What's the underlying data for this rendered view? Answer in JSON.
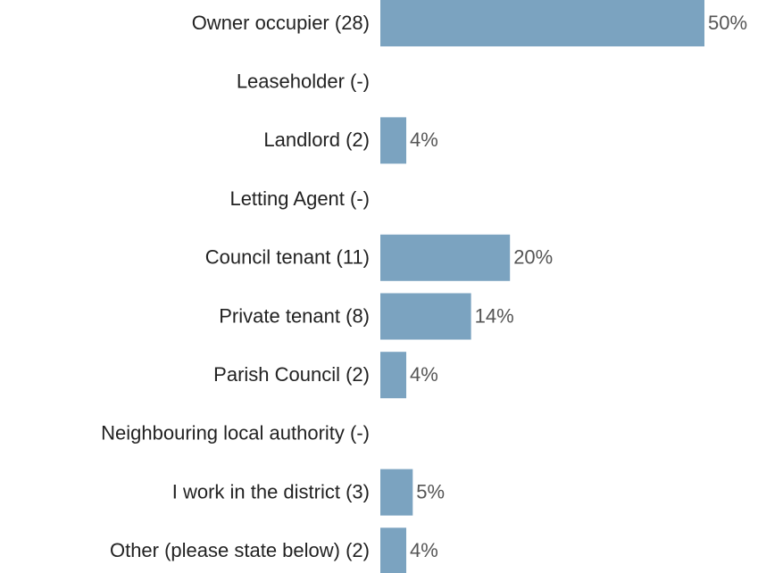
{
  "chart_data": {
    "type": "hbar",
    "categories": [
      "Owner occupier (28)",
      "Leaseholder (-)",
      "Landlord (2)",
      "Letting Agent (-)",
      "Council tenant (11)",
      "Private tenant (8)",
      "Parish Council (2)",
      "Neighbouring local authority (-)",
      "I work in the district (3)",
      "Other (please state below) (2)"
    ],
    "values": [
      50,
      null,
      4,
      null,
      20,
      14,
      4,
      null,
      5,
      4
    ],
    "value_labels": [
      "50%",
      null,
      "4%",
      null,
      "20%",
      "14%",
      "4%",
      null,
      "5%",
      "4%"
    ],
    "color": "#7ba3c0"
  }
}
